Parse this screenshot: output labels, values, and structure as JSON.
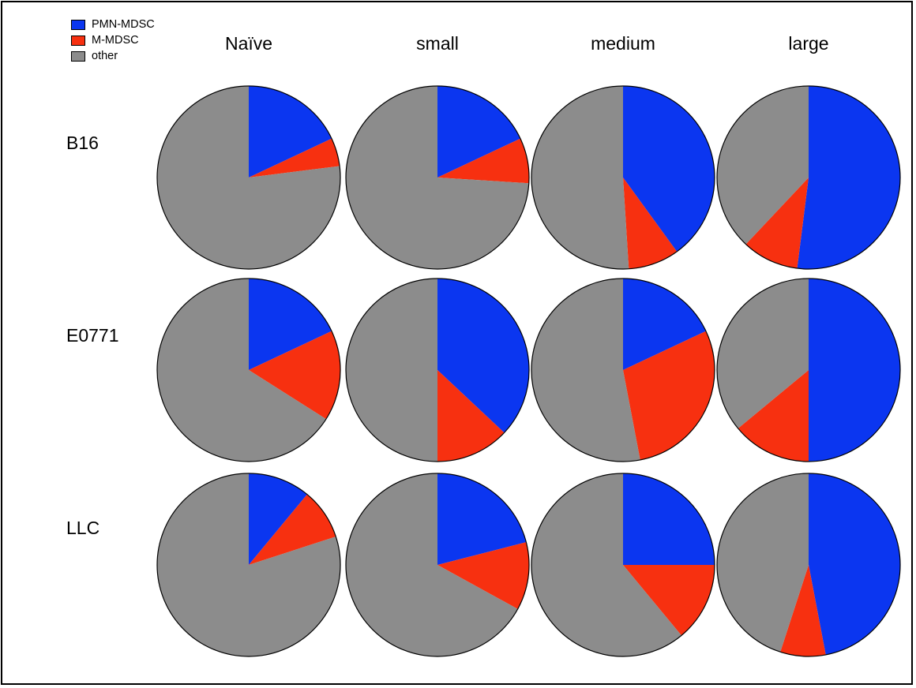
{
  "chart_data": {
    "type": "pie",
    "layout": "grid",
    "legend": {
      "placement": "top-left",
      "entries": [
        {
          "name": "PMN-MDSC",
          "color": "#0b36f0"
        },
        {
          "name": "M-MDSC",
          "color": "#f73010"
        },
        {
          "name": "other",
          "color": "#8c8c8c"
        }
      ]
    },
    "columns": [
      "Naïve",
      "small",
      "medium",
      "large"
    ],
    "rows": [
      "B16",
      "E0771",
      "LLC"
    ],
    "pies": [
      {
        "row": "B16",
        "column": "Naïve",
        "values": {
          "PMN-MDSC": 0.18,
          "M-MDSC": 0.05,
          "other": 0.77
        }
      },
      {
        "row": "B16",
        "column": "small",
        "values": {
          "PMN-MDSC": 0.18,
          "M-MDSC": 0.08,
          "other": 0.74
        }
      },
      {
        "row": "B16",
        "column": "medium",
        "values": {
          "PMN-MDSC": 0.4,
          "M-MDSC": 0.09,
          "other": 0.51
        }
      },
      {
        "row": "B16",
        "column": "large",
        "values": {
          "PMN-MDSC": 0.52,
          "M-MDSC": 0.1,
          "other": 0.38
        }
      },
      {
        "row": "E0771",
        "column": "Naïve",
        "values": {
          "PMN-MDSC": 0.18,
          "M-MDSC": 0.16,
          "other": 0.66
        }
      },
      {
        "row": "E0771",
        "column": "small",
        "values": {
          "PMN-MDSC": 0.37,
          "M-MDSC": 0.13,
          "other": 0.5
        }
      },
      {
        "row": "E0771",
        "column": "medium",
        "values": {
          "PMN-MDSC": 0.18,
          "M-MDSC": 0.29,
          "other": 0.53
        }
      },
      {
        "row": "E0771",
        "column": "large",
        "values": {
          "PMN-MDSC": 0.5,
          "M-MDSC": 0.14,
          "other": 0.36
        }
      },
      {
        "row": "LLC",
        "column": "Naïve",
        "values": {
          "PMN-MDSC": 0.11,
          "M-MDSC": 0.09,
          "other": 0.8
        }
      },
      {
        "row": "LLC",
        "column": "small",
        "values": {
          "PMN-MDSC": 0.21,
          "M-MDSC": 0.12,
          "other": 0.67
        }
      },
      {
        "row": "LLC",
        "column": "medium",
        "values": {
          "PMN-MDSC": 0.25,
          "M-MDSC": 0.14,
          "other": 0.61
        }
      },
      {
        "row": "LLC",
        "column": "large",
        "values": {
          "PMN-MDSC": 0.47,
          "M-MDSC": 0.08,
          "other": 0.45
        }
      }
    ]
  }
}
